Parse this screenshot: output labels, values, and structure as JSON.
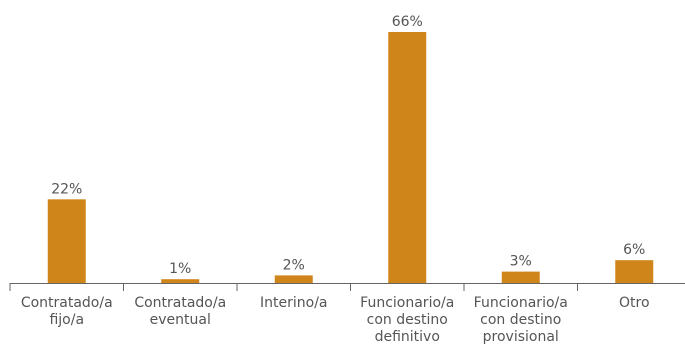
{
  "chart_data": {
    "type": "bar",
    "title": "",
    "xlabel": "",
    "ylabel": "",
    "ylim": [
      0,
      66
    ],
    "grid": false,
    "legend": "none",
    "bar_color": "#D0851A",
    "axis_color": "#666666",
    "label_color": "#555555",
    "categories": [
      {
        "lines": [
          "Contratado/a",
          "fijo/a"
        ]
      },
      {
        "lines": [
          "Contratado/a",
          "eventual"
        ]
      },
      {
        "lines": [
          "Interino/a"
        ]
      },
      {
        "lines": [
          "Funcionario/a",
          "con destino",
          "definitivo"
        ]
      },
      {
        "lines": [
          "Funcionario/a",
          "con destino",
          "provisional"
        ]
      },
      {
        "lines": [
          "Otro"
        ]
      }
    ],
    "values": [
      22,
      1,
      2,
      66,
      3,
      6
    ],
    "value_labels": [
      "22%",
      "1%",
      "2%",
      "66%",
      "3%",
      "6%"
    ]
  }
}
